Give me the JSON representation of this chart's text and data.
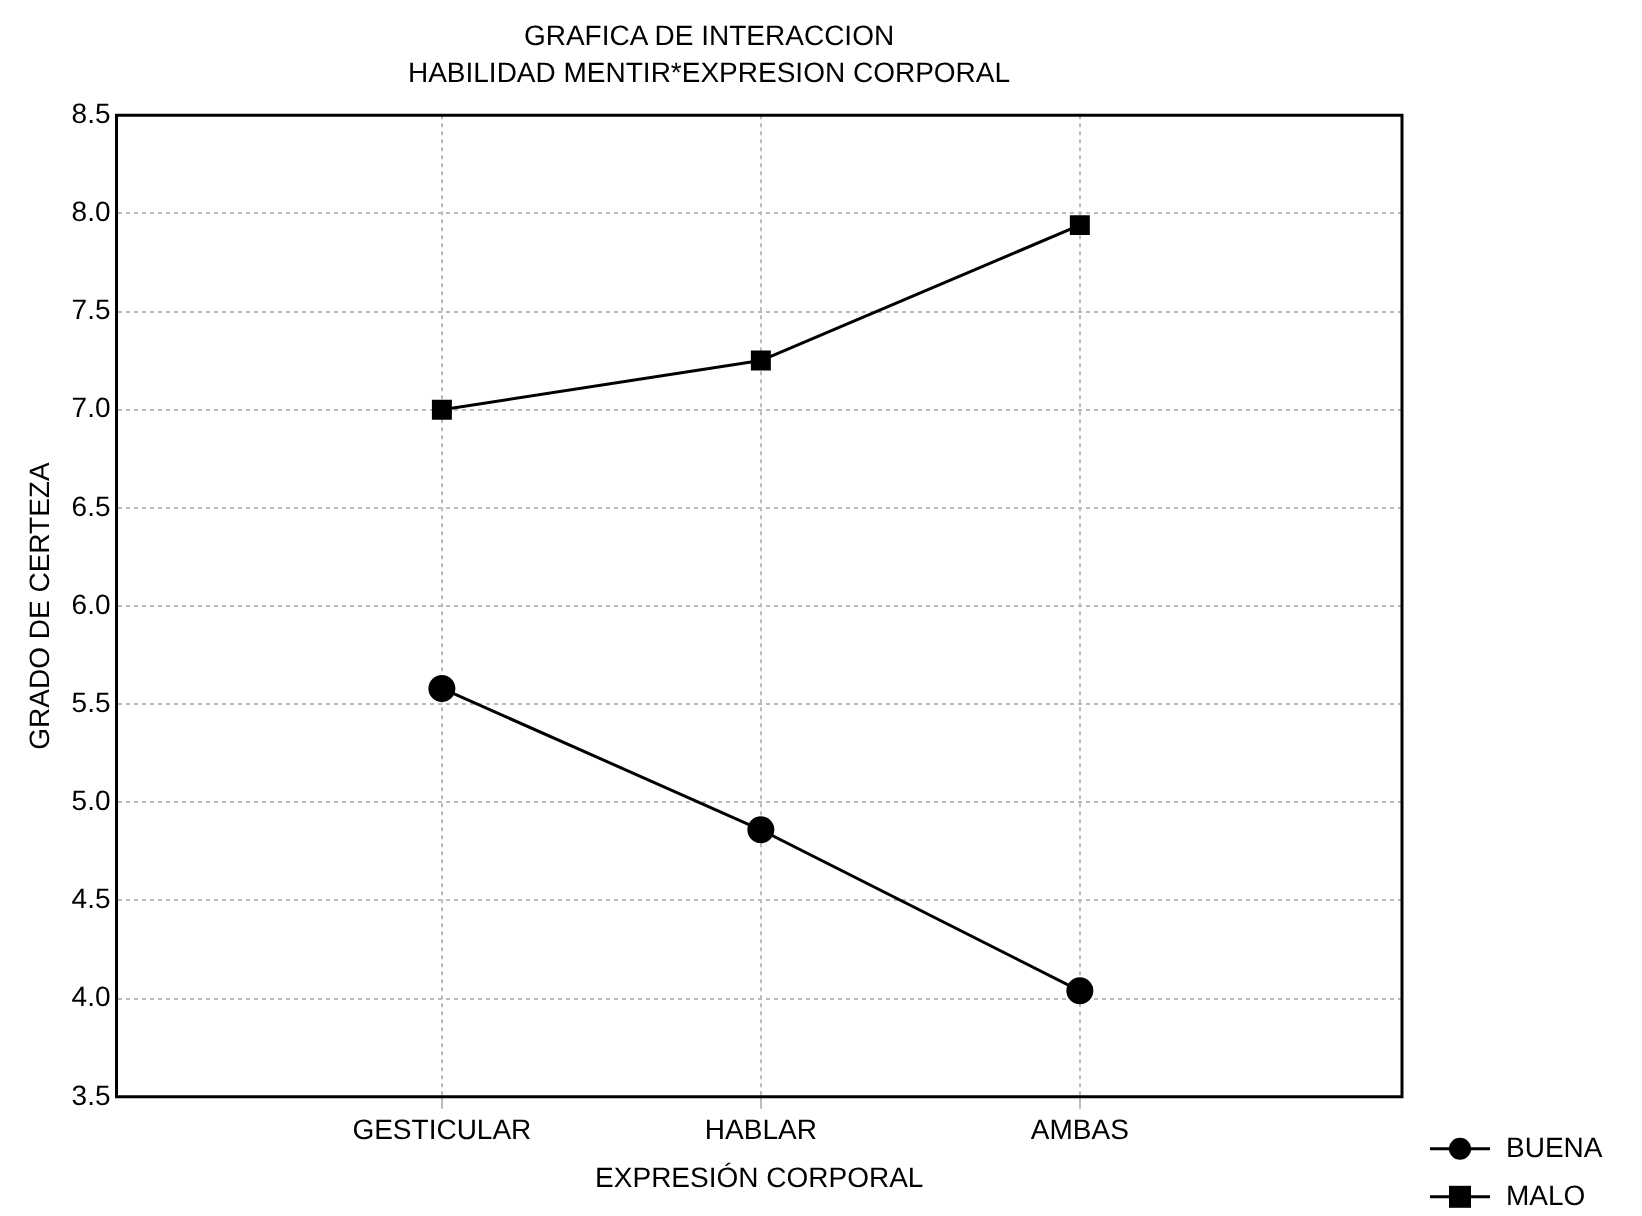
{
  "chart_data": {
    "type": "line",
    "title": "GRAFICA DE INTERACCION",
    "subtitle": "HABILIDAD MENTIR*EXPRESION CORPORAL",
    "xlabel": "EXPRESIÓN CORPORAL",
    "ylabel": "GRADO DE CERTEZA",
    "categories": [
      "GESTICULAR",
      "HABLAR",
      "AMBAS"
    ],
    "series": [
      {
        "name": "BUENA",
        "color": "#000000",
        "marker": "circle",
        "values": [
          5.58,
          4.86,
          4.04
        ]
      },
      {
        "name": "MALO",
        "color": "#000000",
        "marker": "square",
        "values": [
          7.0,
          7.25,
          7.94
        ]
      }
    ],
    "ylim": [
      3.5,
      8.5
    ],
    "yticks": [
      {
        "value": 3.5,
        "label": "3.5"
      },
      {
        "value": 4,
        "label": "4.0"
      },
      {
        "value": 4.5,
        "label": "4.5"
      },
      {
        "value": 5,
        "label": "5.0"
      },
      {
        "value": 5.5,
        "label": "5.5"
      },
      {
        "value": 6,
        "label": "6.0"
      },
      {
        "value": 6.5,
        "label": "6.5"
      },
      {
        "value": 7,
        "label": "7.0"
      },
      {
        "value": 7.5,
        "label": "7.5"
      },
      {
        "value": 8,
        "label": "8.0"
      },
      {
        "value": 8.5,
        "label": "8.5"
      }
    ],
    "grid": true,
    "legend": "bottom right",
    "line_style": "solid"
  }
}
